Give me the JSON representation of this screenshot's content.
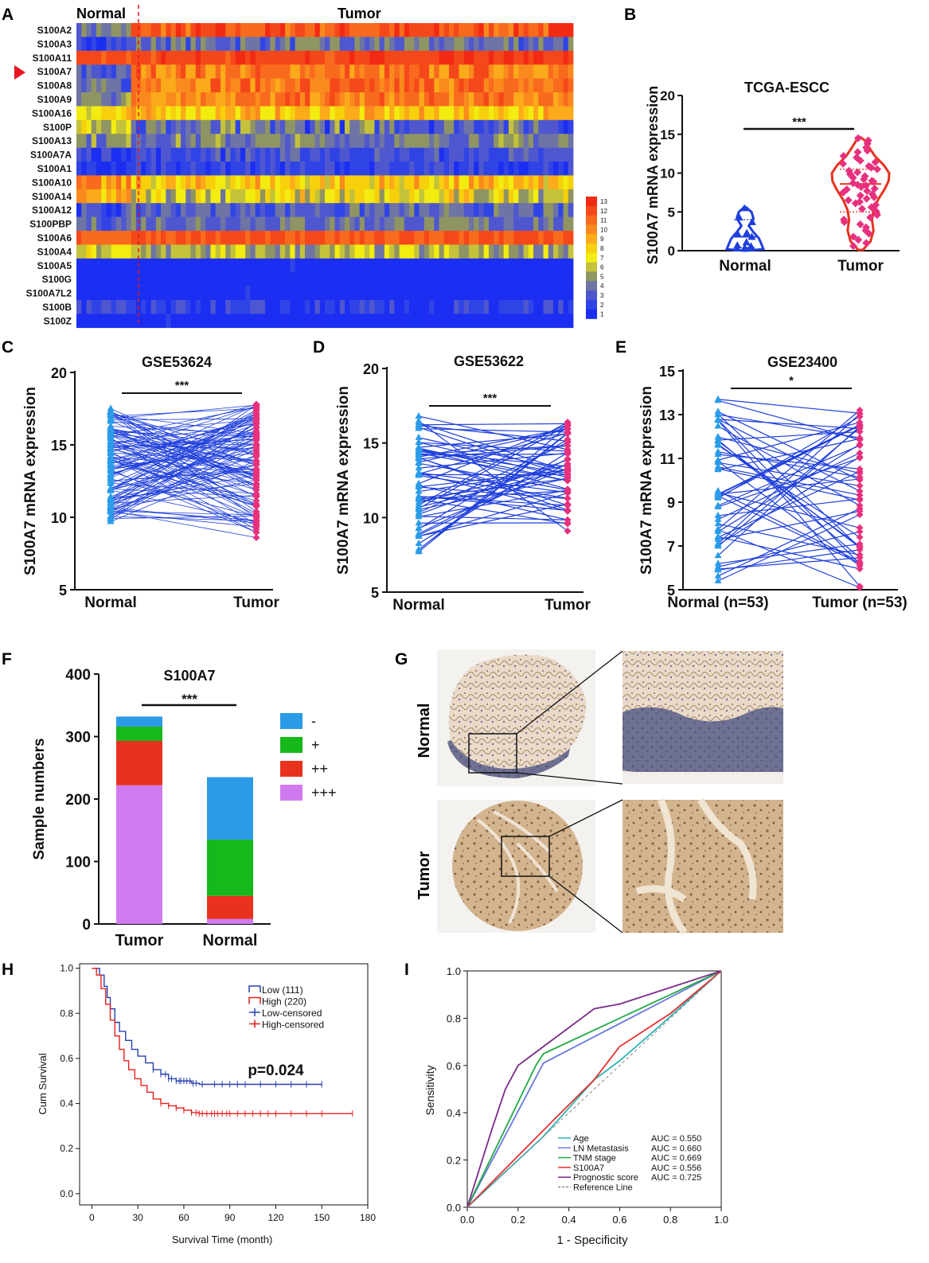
{
  "colors": {
    "blue": "#1f3fdc",
    "pink": "#e8317e",
    "cyan": "#2b9be8",
    "red": "#e8321e",
    "green": "#16b81c",
    "violet": "#d07af0",
    "km_low": "#2740b0",
    "km_high": "#e8201e",
    "roc_age": "#2bb5b5",
    "roc_ln": "#6a78e0",
    "roc_tnm": "#22aa44",
    "roc_s100": "#e83030",
    "roc_prog": "#7a2a8a",
    "ref": "#888888"
  },
  "panels": {
    "A": "A",
    "B": "B",
    "C": "C",
    "D": "D",
    "E": "E",
    "F": "F",
    "G": "G",
    "H": "H",
    "I": "I"
  },
  "heatmap": {
    "group_labels": [
      "Normal",
      "Tumor"
    ],
    "genes": [
      "S100A2",
      "S100A3",
      "S100A11",
      "S100A7",
      "S100A8",
      "S100A9",
      "S100A16",
      "S100P",
      "S100A13",
      "S100A7A",
      "S100A1",
      "S100A10",
      "S100A14",
      "S100A12",
      "S100PBP",
      "S100A6",
      "S100A4",
      "S100A5",
      "S100G",
      "S100A7L2",
      "S100B",
      "S100Z"
    ],
    "highlight": "S100A7",
    "scale_ticks": [
      "13",
      "12",
      "11",
      "10",
      "9",
      "8",
      "7",
      "6",
      "5",
      "4",
      "3",
      "2",
      "1"
    ],
    "scale_colors": [
      "#f22a14",
      "#f5481a",
      "#f86a1e",
      "#fa8a1e",
      "#fbaa1a",
      "#f7d00c",
      "#f2ec10",
      "#c4c23a",
      "#8f9463",
      "#6e74a4",
      "#4f57cf",
      "#3044e6",
      "#1b2ef2"
    ],
    "n_normal": 11,
    "n_tumor": 89,
    "row_means": [
      [
        4.2,
        11.5
      ],
      [
        2.5,
        3.8
      ],
      [
        11.8,
        12.1
      ],
      [
        3.2,
        10.4
      ],
      [
        3.2,
        10.6
      ],
      [
        4.6,
        10.3
      ],
      [
        7.5,
        8.2
      ],
      [
        7.3,
        3.6
      ],
      [
        4.5,
        4.3
      ],
      [
        2.2,
        2.6
      ],
      [
        1.6,
        2.1
      ],
      [
        9.4,
        8.0
      ],
      [
        8.2,
        6.6
      ],
      [
        2.3,
        3.3
      ],
      [
        3.6,
        4.0
      ],
      [
        11.2,
        11.6
      ],
      [
        6.3,
        5.4
      ],
      [
        1.0,
        1.0
      ],
      [
        1.0,
        1.0
      ],
      [
        1.0,
        1.0
      ],
      [
        1.9,
        1.5
      ],
      [
        1.0,
        1.0
      ]
    ],
    "row_spread": [
      1.4,
      1.6,
      0.7,
      1.6,
      1.6,
      1.6,
      1.6,
      2.3,
      1.4,
      1.2,
      0.9,
      2.0,
      2.2,
      1.4,
      1.4,
      0.8,
      1.6,
      0,
      0,
      0,
      1.4,
      0
    ]
  },
  "chart_data": [
    {
      "panel": "B",
      "type": "violin",
      "title": "TCGA-ESCC",
      "ylabel": "S100A7 mRNA expression",
      "categories": [
        "Normal",
        "Tumor"
      ],
      "ylim": [
        0,
        20
      ],
      "yticks": [
        0,
        5,
        10,
        15,
        20
      ],
      "significance": "***",
      "series": [
        {
          "name": "Normal",
          "values": [
            0.2,
            0.3,
            0.5,
            0.6,
            1.0,
            1.7,
            2.0,
            2.2,
            3.6,
            4.2,
            5.4
          ],
          "median": 1.8,
          "q1": 0.4,
          "q3": 4.0
        },
        {
          "name": "Tumor",
          "values": [
            14.5,
            14.2,
            13.8,
            13.3,
            12.9,
            12.7,
            12.2,
            12.0,
            11.6,
            11.4,
            11.2,
            10.9,
            10.7,
            10.5,
            10.3,
            10.1,
            9.9,
            9.7,
            9.6,
            9.4,
            9.2,
            9.0,
            8.9,
            8.7,
            8.5,
            8.4,
            8.2,
            8.0,
            7.9,
            7.7,
            7.5,
            7.3,
            7.1,
            6.9,
            6.7,
            6.5,
            6.3,
            6.1,
            5.9,
            5.6,
            5.4,
            5.1,
            4.8,
            4.6,
            4.3,
            4.0,
            3.7,
            3.4,
            3.0,
            2.6,
            2.2,
            1.8,
            1.4,
            1.0,
            0.6
          ],
          "median": 8.6,
          "q1": 5.0,
          "q3": 10.5
        }
      ]
    },
    {
      "panel": "C",
      "type": "paired",
      "title": "GSE53624",
      "ylabel": "S100A7 mRNA expression",
      "categories": [
        "Normal",
        "Tumor"
      ],
      "ylim": [
        5,
        20
      ],
      "yticks": [
        5,
        10,
        15,
        20
      ],
      "significance": "***",
      "n_pairs": 119,
      "normal_range": [
        9.7,
        17.5
      ],
      "tumor_range": [
        8.6,
        17.8
      ]
    },
    {
      "panel": "D",
      "type": "paired",
      "title": "GSE53622",
      "ylabel": "S100A7 mRNA expression",
      "categories": [
        "Normal",
        "Tumor"
      ],
      "ylim": [
        5,
        20
      ],
      "yticks": [
        5,
        10,
        15,
        20
      ],
      "significance": "***",
      "n_pairs": 60,
      "normal_range": [
        7.7,
        16.8
      ],
      "tumor_range": [
        9.1,
        16.4
      ]
    },
    {
      "panel": "E",
      "type": "paired",
      "title": "GSE23400",
      "ylabel": "S100A7 mRNA expression",
      "categories": [
        "Normal (n=53)",
        "Tumor (n=53)"
      ],
      "ylim": [
        5,
        15
      ],
      "yticks": [
        5,
        7,
        9,
        11,
        13,
        15
      ],
      "significance": "*",
      "n_pairs": 53,
      "normal_range": [
        5.4,
        13.7
      ],
      "tumor_range": [
        5.1,
        13.2
      ]
    },
    {
      "panel": "F",
      "type": "stacked-bar",
      "title": "S100A7",
      "ylabel": "Sample numbers",
      "categories": [
        "Tumor",
        "Normal"
      ],
      "ylim": [
        0,
        400
      ],
      "yticks": [
        0,
        100,
        200,
        300,
        400
      ],
      "significance": "***",
      "legend_position": "right",
      "series": [
        {
          "name": "+++",
          "values": [
            222,
            8
          ]
        },
        {
          "name": "++",
          "values": [
            71,
            37
          ]
        },
        {
          "name": "+",
          "values": [
            23,
            90
          ]
        },
        {
          "name": "-",
          "values": [
            16,
            100
          ]
        }
      ]
    },
    {
      "panel": "H",
      "type": "kaplan-meier",
      "xlabel": "Survival Time (month)",
      "ylabel": "Cum Survival",
      "xlim": [
        -8,
        180
      ],
      "ylim": [
        -0.05,
        1.02
      ],
      "xticks": [
        0,
        30,
        60,
        90,
        120,
        150,
        180
      ],
      "yticks": [
        0.0,
        0.2,
        0.4,
        0.6,
        0.8,
        1.0
      ],
      "annotation": "p=0.024",
      "legend": [
        "Low (111)",
        "High (220)",
        "Low-censored",
        "High-censored"
      ],
      "series": [
        {
          "name": "Low (111)",
          "x": [
            0,
            5,
            8,
            10,
            12,
            15,
            18,
            22,
            26,
            30,
            35,
            40,
            45,
            50,
            55,
            60,
            65,
            70,
            150
          ],
          "y": [
            1.0,
            0.97,
            0.92,
            0.87,
            0.82,
            0.76,
            0.72,
            0.68,
            0.64,
            0.61,
            0.58,
            0.55,
            0.53,
            0.51,
            0.5,
            0.5,
            0.49,
            0.485,
            0.485
          ]
        },
        {
          "name": "High (220)",
          "x": [
            0,
            3,
            6,
            9,
            12,
            15,
            18,
            21,
            24,
            28,
            32,
            36,
            40,
            45,
            50,
            55,
            60,
            65,
            70,
            100,
            170
          ],
          "y": [
            1.0,
            0.97,
            0.91,
            0.84,
            0.77,
            0.7,
            0.64,
            0.59,
            0.55,
            0.51,
            0.48,
            0.45,
            0.42,
            0.4,
            0.39,
            0.38,
            0.37,
            0.36,
            0.355,
            0.355,
            0.355
          ]
        }
      ],
      "censor_low": [
        40,
        45,
        48,
        50,
        52,
        55,
        57,
        58,
        60,
        62,
        64,
        66,
        68,
        72,
        80,
        85,
        90,
        95,
        100,
        110,
        120,
        130,
        140,
        150
      ],
      "censor_high": [
        45,
        50,
        55,
        60,
        65,
        68,
        70,
        72,
        75,
        78,
        80,
        82,
        85,
        88,
        90,
        95,
        100,
        105,
        110,
        115,
        120,
        130,
        140,
        150,
        170
      ]
    },
    {
      "panel": "I",
      "type": "roc",
      "xlabel": "1 - Specificity",
      "ylabel": "Sensitivity",
      "xlim": [
        0,
        1
      ],
      "ylim": [
        0,
        1
      ],
      "xticks": [
        "0.0",
        "0.2",
        "0.4",
        "0.6",
        "0.8",
        "1.0"
      ],
      "yticks": [
        "0.0",
        "0.2",
        "0.4",
        "0.6",
        "0.8",
        "1.0"
      ],
      "series": [
        {
          "name": "Age",
          "auc": "AUC = 0.550",
          "x": [
            0,
            0.3,
            0.4,
            0.5,
            0.6,
            0.75,
            1
          ],
          "y": [
            0,
            0.3,
            0.42,
            0.54,
            0.62,
            0.76,
            1
          ]
        },
        {
          "name": "LN Metastasis",
          "auc": "AUC = 0.660",
          "x": [
            0,
            0.3,
            1
          ],
          "y": [
            0,
            0.61,
            1
          ]
        },
        {
          "name": "TNM stage",
          "auc": "AUC = 0.669",
          "x": [
            0,
            0.27,
            0.3,
            1
          ],
          "y": [
            0,
            0.6,
            0.65,
            1
          ]
        },
        {
          "name": "S100A7",
          "auc": "AUC = 0.556",
          "x": [
            0,
            0.35,
            0.5,
            0.6,
            0.8,
            1
          ],
          "y": [
            0,
            0.38,
            0.54,
            0.68,
            0.82,
            1
          ]
        },
        {
          "name": "Prognostic score",
          "auc": "AUC = 0.725",
          "x": [
            0,
            0.1,
            0.15,
            0.2,
            0.25,
            0.3,
            0.5,
            0.6,
            1
          ],
          "y": [
            0,
            0.34,
            0.5,
            0.6,
            0.64,
            0.68,
            0.84,
            0.86,
            1
          ]
        },
        {
          "name": "Reference Line",
          "auc": "",
          "x": [
            0,
            1
          ],
          "y": [
            0,
            1
          ]
        }
      ]
    }
  ],
  "ihc": {
    "row_labels": [
      "Normal",
      "Tumor"
    ]
  }
}
